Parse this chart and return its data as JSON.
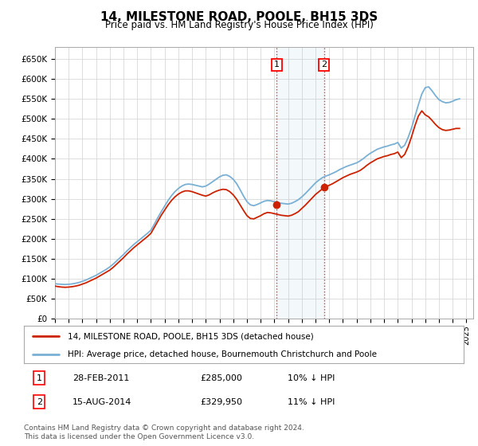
{
  "title": "14, MILESTONE ROAD, POOLE, BH15 3DS",
  "subtitle": "Price paid vs. HM Land Registry's House Price Index (HPI)",
  "ylim": [
    0,
    680000
  ],
  "xlim_start": 1995,
  "xlim_end": 2025.5,
  "bg_color": "#ffffff",
  "grid_color": "#d0d0d0",
  "hpi_color": "#7ab0d4",
  "price_color": "#cc2200",
  "transaction1": {
    "date": "28-FEB-2011",
    "price": 285000,
    "label": "1",
    "pct": "10%",
    "direction": "↓",
    "year": 2011.17
  },
  "transaction2": {
    "date": "15-AUG-2014",
    "price": 329950,
    "label": "2",
    "pct": "11%",
    "direction": "↓",
    "year": 2014.62
  },
  "legend_property": "14, MILESTONE ROAD, POOLE, BH15 3DS (detached house)",
  "legend_hpi": "HPI: Average price, detached house, Bournemouth Christchurch and Poole",
  "footnote": "Contains HM Land Registry data © Crown copyright and database right 2024.\nThis data is licensed under the Open Government Licence v3.0.",
  "hpi_data_years": [
    1995.0,
    1995.25,
    1995.5,
    1995.75,
    1996.0,
    1996.25,
    1996.5,
    1996.75,
    1997.0,
    1997.25,
    1997.5,
    1997.75,
    1998.0,
    1998.25,
    1998.5,
    1998.75,
    1999.0,
    1999.25,
    1999.5,
    1999.75,
    2000.0,
    2000.25,
    2000.5,
    2000.75,
    2001.0,
    2001.25,
    2001.5,
    2001.75,
    2002.0,
    2002.25,
    2002.5,
    2002.75,
    2003.0,
    2003.25,
    2003.5,
    2003.75,
    2004.0,
    2004.25,
    2004.5,
    2004.75,
    2005.0,
    2005.25,
    2005.5,
    2005.75,
    2006.0,
    2006.25,
    2006.5,
    2006.75,
    2007.0,
    2007.25,
    2007.5,
    2007.75,
    2008.0,
    2008.25,
    2008.5,
    2008.75,
    2009.0,
    2009.25,
    2009.5,
    2009.75,
    2010.0,
    2010.25,
    2010.5,
    2010.75,
    2011.0,
    2011.25,
    2011.5,
    2011.75,
    2012.0,
    2012.25,
    2012.5,
    2012.75,
    2013.0,
    2013.25,
    2013.5,
    2013.75,
    2014.0,
    2014.25,
    2014.5,
    2014.75,
    2015.0,
    2015.25,
    2015.5,
    2015.75,
    2016.0,
    2016.25,
    2016.5,
    2016.75,
    2017.0,
    2017.25,
    2017.5,
    2017.75,
    2018.0,
    2018.25,
    2018.5,
    2018.75,
    2019.0,
    2019.25,
    2019.5,
    2019.75,
    2020.0,
    2020.25,
    2020.5,
    2020.75,
    2021.0,
    2021.25,
    2021.5,
    2021.75,
    2022.0,
    2022.25,
    2022.5,
    2022.75,
    2023.0,
    2023.25,
    2023.5,
    2023.75,
    2024.0,
    2024.25,
    2024.5
  ],
  "hpi_data_vals": [
    88000,
    87000,
    86500,
    86000,
    86500,
    87500,
    89000,
    91000,
    94000,
    97000,
    101000,
    105000,
    109000,
    114000,
    119000,
    124000,
    130000,
    137000,
    145000,
    153000,
    161000,
    170000,
    178000,
    186000,
    193000,
    200000,
    207000,
    214000,
    222000,
    237000,
    253000,
    268000,
    282000,
    296000,
    308000,
    318000,
    326000,
    332000,
    336000,
    337000,
    336000,
    334000,
    332000,
    330000,
    332000,
    337000,
    343000,
    349000,
    355000,
    359000,
    360000,
    356000,
    349000,
    338000,
    323000,
    307000,
    293000,
    285000,
    283000,
    286000,
    290000,
    294000,
    296000,
    295000,
    293000,
    291000,
    289000,
    288000,
    287000,
    289000,
    293000,
    298000,
    305000,
    313000,
    322000,
    331000,
    340000,
    347000,
    353000,
    357000,
    360000,
    364000,
    368000,
    373000,
    377000,
    381000,
    384000,
    387000,
    390000,
    395000,
    401000,
    408000,
    414000,
    419000,
    424000,
    427000,
    430000,
    432000,
    435000,
    437000,
    441000,
    427000,
    434000,
    453000,
    477000,
    506000,
    535000,
    562000,
    578000,
    580000,
    570000,
    558000,
    548000,
    543000,
    540000,
    541000,
    544000,
    548000,
    550000
  ],
  "price_data_years": [
    1995.0,
    1995.25,
    1995.5,
    1995.75,
    1996.0,
    1996.25,
    1996.5,
    1996.75,
    1997.0,
    1997.25,
    1997.5,
    1997.75,
    1998.0,
    1998.25,
    1998.5,
    1998.75,
    1999.0,
    1999.25,
    1999.5,
    1999.75,
    2000.0,
    2000.25,
    2000.5,
    2000.75,
    2001.0,
    2001.25,
    2001.5,
    2001.75,
    2002.0,
    2002.25,
    2002.5,
    2002.75,
    2003.0,
    2003.25,
    2003.5,
    2003.75,
    2004.0,
    2004.25,
    2004.5,
    2004.75,
    2005.0,
    2005.25,
    2005.5,
    2005.75,
    2006.0,
    2006.25,
    2006.5,
    2006.75,
    2007.0,
    2007.25,
    2007.5,
    2007.75,
    2008.0,
    2008.25,
    2008.5,
    2008.75,
    2009.0,
    2009.25,
    2009.5,
    2009.75,
    2010.0,
    2010.25,
    2010.5,
    2010.75,
    2011.0,
    2011.25,
    2011.5,
    2011.75,
    2012.0,
    2012.25,
    2012.5,
    2012.75,
    2013.0,
    2013.25,
    2013.5,
    2013.75,
    2014.0,
    2014.25,
    2014.5,
    2014.75,
    2015.0,
    2015.25,
    2015.5,
    2015.75,
    2016.0,
    2016.25,
    2016.5,
    2016.75,
    2017.0,
    2017.25,
    2017.5,
    2017.75,
    2018.0,
    2018.25,
    2018.5,
    2018.75,
    2019.0,
    2019.25,
    2019.5,
    2019.75,
    2020.0,
    2020.25,
    2020.5,
    2020.75,
    2021.0,
    2021.25,
    2021.5,
    2021.75,
    2022.0,
    2022.25,
    2022.5,
    2022.75,
    2023.0,
    2023.25,
    2023.5,
    2023.75,
    2024.0,
    2024.25,
    2024.5
  ],
  "price_data_vals": [
    82000,
    80500,
    79500,
    79000,
    79500,
    80500,
    82000,
    84000,
    87000,
    90000,
    94000,
    98000,
    102000,
    107000,
    112000,
    117000,
    122000,
    129000,
    137000,
    145000,
    153000,
    162000,
    170000,
    178000,
    185000,
    192000,
    199000,
    206000,
    214000,
    229000,
    244000,
    259000,
    272000,
    285000,
    296000,
    305000,
    312000,
    317000,
    320000,
    320000,
    318000,
    315000,
    312000,
    309000,
    307000,
    310000,
    315000,
    319000,
    322000,
    324000,
    323000,
    318000,
    310000,
    299000,
    285000,
    271000,
    258000,
    251000,
    250000,
    254000,
    258000,
    263000,
    266000,
    265000,
    263000,
    261000,
    259000,
    258000,
    257000,
    259000,
    263000,
    268000,
    276000,
    284000,
    293000,
    302000,
    311000,
    318000,
    325000,
    330000,
    334000,
    338000,
    343000,
    348000,
    353000,
    357000,
    361000,
    364000,
    367000,
    371000,
    377000,
    384000,
    390000,
    395000,
    400000,
    403000,
    406000,
    408000,
    411000,
    413000,
    417000,
    403000,
    411000,
    430000,
    455000,
    483000,
    507000,
    520000,
    510000,
    505000,
    496000,
    486000,
    478000,
    473000,
    471000,
    472000,
    474000,
    476000,
    476000
  ]
}
